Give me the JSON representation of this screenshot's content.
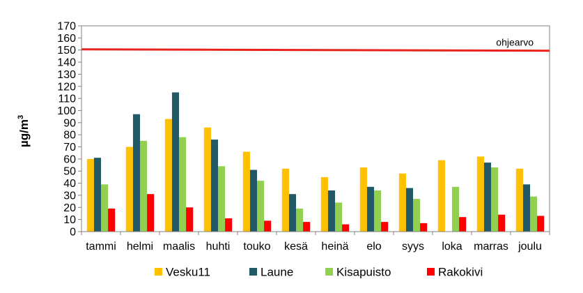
{
  "chart_data": {
    "type": "bar",
    "title": "",
    "xlabel": "",
    "ylabel": "µg/m",
    "ylabel_superscript": "3",
    "ylim": [
      0,
      170
    ],
    "yticks": [
      0,
      10,
      20,
      30,
      40,
      50,
      60,
      70,
      80,
      90,
      100,
      110,
      120,
      130,
      140,
      150,
      160,
      170
    ],
    "grid": false,
    "legend_position": "bottom",
    "categories": [
      "tammi",
      "helmi",
      "maalis",
      "huhti",
      "touko",
      "kesä",
      "heinä",
      "elo",
      "syys",
      "loka",
      "marras",
      "joulu"
    ],
    "series": [
      {
        "name": "Vesku11",
        "color": "#FFC000",
        "values": [
          60,
          70,
          93,
          86,
          66,
          52,
          45,
          53,
          48,
          59,
          62,
          52
        ]
      },
      {
        "name": "Laune",
        "color": "#215967",
        "values": [
          61,
          97,
          115,
          76,
          51,
          31,
          34,
          37,
          36,
          null,
          57,
          39
        ]
      },
      {
        "name": "Kisapuisto",
        "color": "#92D050",
        "values": [
          39,
          75,
          78,
          54,
          42,
          19,
          24,
          34,
          27,
          37,
          53,
          29
        ]
      },
      {
        "name": "Rakokivi",
        "color": "#FF0000",
        "values": [
          19,
          31,
          20,
          11,
          9,
          8,
          6,
          8,
          7,
          12,
          14,
          13
        ]
      }
    ],
    "reference_line": {
      "label": "ohjearvo",
      "value": 150,
      "color": "#E8231E"
    }
  }
}
